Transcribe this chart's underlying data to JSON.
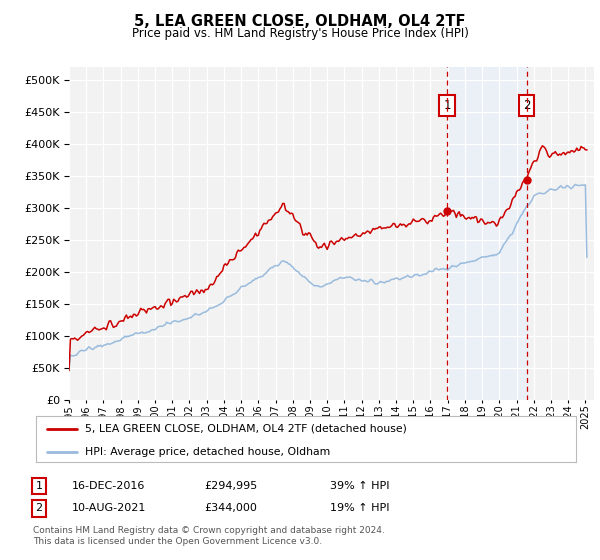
{
  "title": "5, LEA GREEN CLOSE, OLDHAM, OL4 2TF",
  "subtitle": "Price paid vs. HM Land Registry's House Price Index (HPI)",
  "ytick_values": [
    0,
    50000,
    100000,
    150000,
    200000,
    250000,
    300000,
    350000,
    400000,
    450000,
    500000
  ],
  "ylim": [
    0,
    520000
  ],
  "xlim_left": 1995,
  "xlim_right": 2025.5,
  "background_color": "#ffffff",
  "plot_bg_color": "#f2f2f2",
  "grid_color": "#ffffff",
  "red_line_color": "#cc0000",
  "blue_line_color": "#99bbdd",
  "marker1_x": 2016.958,
  "marker1_y": 294995,
  "marker2_x": 2021.583,
  "marker2_y": 344000,
  "shade_color": "#ddeeff",
  "shade_alpha": 0.35,
  "legend_red": "5, LEA GREEN CLOSE, OLDHAM, OL4 2TF (detached house)",
  "legend_blue": "HPI: Average price, detached house, Oldham",
  "note1_box": "1",
  "note1_text": "16-DEC-2016",
  "note1_price": "£294,995",
  "note1_hpi": "39% ↑ HPI",
  "note2_box": "2",
  "note2_text": "10-AUG-2021",
  "note2_price": "£344,000",
  "note2_hpi": "19% ↑ HPI",
  "footnote1": "Contains HM Land Registry data © Crown copyright and database right 2024.",
  "footnote2": "This data is licensed under the Open Government Licence v3.0."
}
